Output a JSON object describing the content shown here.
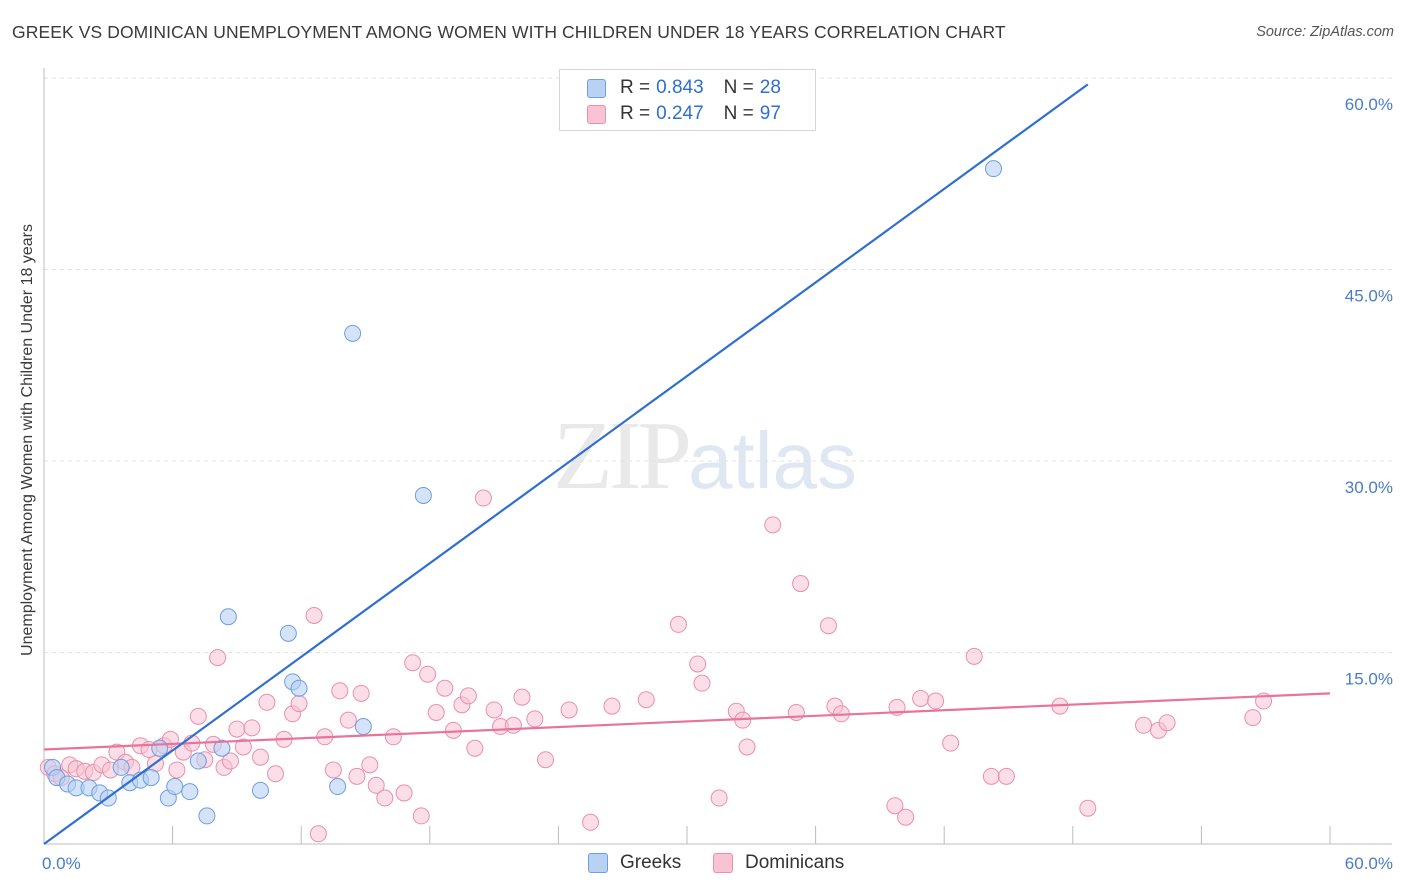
{
  "title": "GREEK VS DOMINICAN UNEMPLOYMENT AMONG WOMEN WITH CHILDREN UNDER 18 YEARS CORRELATION CHART",
  "source": "Source: ZipAtlas.com",
  "watermark": {
    "zip": "ZIP",
    "atlas": "atlas"
  },
  "colors": {
    "greeks_fill": "#b9d1f3",
    "greeks_stroke": "#6d9ee0",
    "greeks_line": "#2f6fd0",
    "dominicans_fill": "#f8c3d3",
    "dominicans_stroke": "#eb8fac",
    "dominicans_line": "#e8739b",
    "tick_label": "#4a7cc9",
    "grid": "#e3e3e3"
  },
  "legend_top": {
    "rows": [
      {
        "r_label": "R =",
        "r_value": "0.843",
        "n_label": "N =",
        "n_value": "28"
      },
      {
        "r_label": "R =",
        "r_value": "0.247",
        "n_label": "N =",
        "n_value": "97"
      }
    ]
  },
  "legend_bottom": {
    "greeks": "Greeks",
    "dominicans": "Dominicans"
  },
  "chart_data": {
    "type": "scatter",
    "title": "GREEK VS DOMINICAN UNEMPLOYMENT AMONG WOMEN WITH CHILDREN UNDER 18 YEARS CORRELATION CHART",
    "xlabel": "",
    "ylabel": "Unemployment Among Women with Children Under 18 years",
    "xlim": [
      0,
      60
    ],
    "ylim": [
      0,
      60
    ],
    "x_tick_labels": [
      "0.0%",
      "60.0%"
    ],
    "y_ticks": [
      15,
      30,
      45,
      60
    ],
    "y_tick_labels": [
      "15.0%",
      "30.0%",
      "45.0%",
      "60.0%"
    ],
    "grid": true,
    "legend_placement": "top-center",
    "series": [
      {
        "name": "Greeks",
        "r": 0.843,
        "n": 28,
        "trendline": {
          "x": [
            0,
            48.7
          ],
          "y": [
            0,
            59.5
          ]
        },
        "points": [
          [
            0.4,
            6.0
          ],
          [
            0.6,
            5.2
          ],
          [
            1.1,
            4.7
          ],
          [
            1.5,
            4.4
          ],
          [
            2.1,
            4.4
          ],
          [
            2.6,
            4.0
          ],
          [
            3.0,
            3.6
          ],
          [
            3.6,
            6.0
          ],
          [
            4.0,
            4.8
          ],
          [
            4.5,
            5.0
          ],
          [
            5.0,
            5.2
          ],
          [
            5.4,
            7.5
          ],
          [
            5.8,
            3.6
          ],
          [
            6.1,
            4.5
          ],
          [
            6.8,
            4.1
          ],
          [
            7.2,
            6.5
          ],
          [
            7.6,
            2.2
          ],
          [
            8.3,
            7.5
          ],
          [
            8.6,
            17.8
          ],
          [
            10.1,
            4.2
          ],
          [
            11.4,
            16.5
          ],
          [
            11.6,
            12.7
          ],
          [
            11.9,
            12.2
          ],
          [
            13.7,
            4.5
          ],
          [
            14.4,
            40.0
          ],
          [
            14.9,
            9.2
          ],
          [
            17.7,
            27.3
          ],
          [
            44.3,
            52.9
          ]
        ]
      },
      {
        "name": "Dominicans",
        "r": 0.247,
        "n": 97,
        "trendline": {
          "x": [
            0,
            60
          ],
          "y": [
            7.4,
            11.8
          ]
        },
        "points": [
          [
            0.2,
            6.0
          ],
          [
            0.5,
            5.5
          ],
          [
            0.8,
            5.2
          ],
          [
            1.2,
            6.2
          ],
          [
            1.5,
            5.9
          ],
          [
            1.9,
            5.7
          ],
          [
            2.3,
            5.6
          ],
          [
            2.7,
            6.2
          ],
          [
            3.1,
            5.8
          ],
          [
            3.4,
            7.2
          ],
          [
            3.8,
            6.4
          ],
          [
            4.1,
            6.0
          ],
          [
            4.5,
            7.7
          ],
          [
            4.9,
            7.4
          ],
          [
            5.2,
            6.3
          ],
          [
            5.6,
            7.7
          ],
          [
            5.9,
            8.2
          ],
          [
            6.2,
            5.8
          ],
          [
            6.5,
            7.2
          ],
          [
            6.9,
            7.9
          ],
          [
            7.2,
            10.0
          ],
          [
            7.5,
            6.6
          ],
          [
            7.9,
            7.8
          ],
          [
            8.1,
            14.6
          ],
          [
            8.4,
            6.0
          ],
          [
            8.7,
            6.5
          ],
          [
            9.0,
            9.0
          ],
          [
            9.3,
            7.6
          ],
          [
            9.7,
            9.1
          ],
          [
            10.1,
            6.8
          ],
          [
            10.4,
            11.1
          ],
          [
            10.8,
            5.5
          ],
          [
            11.2,
            8.2
          ],
          [
            11.6,
            10.2
          ],
          [
            11.9,
            11.0
          ],
          [
            12.6,
            17.9
          ],
          [
            12.8,
            0.8
          ],
          [
            13.1,
            8.4
          ],
          [
            13.5,
            5.8
          ],
          [
            13.8,
            12.0
          ],
          [
            14.2,
            9.7
          ],
          [
            14.6,
            5.3
          ],
          [
            14.8,
            11.8
          ],
          [
            15.2,
            6.2
          ],
          [
            15.5,
            4.6
          ],
          [
            15.9,
            3.6
          ],
          [
            16.3,
            8.4
          ],
          [
            16.8,
            4.0
          ],
          [
            17.2,
            14.2
          ],
          [
            17.6,
            2.2
          ],
          [
            17.9,
            13.3
          ],
          [
            18.3,
            10.3
          ],
          [
            18.7,
            12.2
          ],
          [
            19.1,
            8.9
          ],
          [
            19.5,
            10.9
          ],
          [
            19.8,
            11.6
          ],
          [
            20.1,
            7.5
          ],
          [
            20.5,
            27.1
          ],
          [
            21.0,
            10.5
          ],
          [
            21.3,
            9.2
          ],
          [
            21.9,
            9.3
          ],
          [
            22.3,
            11.5
          ],
          [
            22.9,
            9.8
          ],
          [
            23.4,
            6.6
          ],
          [
            24.5,
            10.5
          ],
          [
            25.5,
            1.7
          ],
          [
            26.5,
            10.8
          ],
          [
            28.1,
            11.3
          ],
          [
            29.6,
            17.2
          ],
          [
            30.5,
            14.1
          ],
          [
            30.7,
            12.6
          ],
          [
            31.5,
            3.6
          ],
          [
            32.3,
            10.4
          ],
          [
            32.6,
            9.7
          ],
          [
            32.8,
            7.6
          ],
          [
            34.0,
            25.0
          ],
          [
            35.1,
            10.3
          ],
          [
            35.3,
            20.4
          ],
          [
            36.6,
            17.1
          ],
          [
            36.9,
            10.8
          ],
          [
            37.2,
            10.2
          ],
          [
            39.7,
            3.0
          ],
          [
            39.8,
            10.7
          ],
          [
            40.2,
            2.1
          ],
          [
            40.9,
            11.4
          ],
          [
            41.6,
            11.2
          ],
          [
            42.3,
            7.9
          ],
          [
            43.4,
            14.7
          ],
          [
            44.2,
            5.3
          ],
          [
            44.9,
            5.3
          ],
          [
            47.4,
            10.8
          ],
          [
            48.7,
            2.8
          ],
          [
            51.3,
            9.3
          ],
          [
            52.0,
            8.9
          ],
          [
            52.4,
            9.5
          ],
          [
            56.4,
            9.9
          ],
          [
            56.9,
            11.2
          ]
        ]
      }
    ]
  }
}
